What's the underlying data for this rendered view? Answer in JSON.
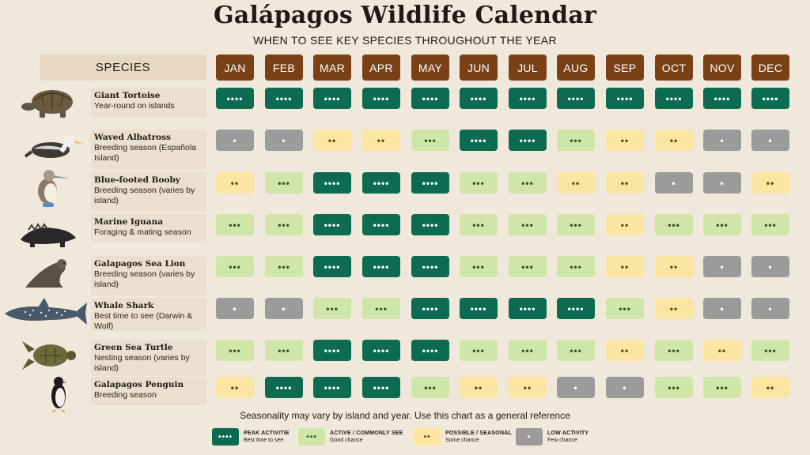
{
  "title": "Galápagos Wildlife Calendar",
  "subtitle": "WHEN TO SEE KEY SPECIES THROUGHOUT THE YEAR",
  "species_header": "SPECIES",
  "footnote": "Seasonality may vary by island and year. Use this chart as a general reference",
  "chart_data": {
    "type": "heatmap",
    "title": "Galápagos Wildlife Calendar",
    "subtitle": "WHEN TO SEE KEY SPECIES THROUGHOUT THE YEAR",
    "months": [
      "JAN",
      "FEB",
      "MAR",
      "APR",
      "MAY",
      "JUN",
      "JUL",
      "AUG",
      "SEP",
      "OCT",
      "NOV",
      "DEC"
    ],
    "levels": {
      "peak": {
        "symbol": "••••",
        "color": "#0c6b50"
      },
      "active": {
        "symbol": "•••",
        "color": "#cfe6a8"
      },
      "possible": {
        "symbol": "••",
        "color": "#fbe5a3"
      },
      "low": {
        "symbol": "•",
        "color": "#9b9b9b"
      }
    },
    "species": [
      {
        "name": "Giant Tortoise",
        "note": "Year-round on islands",
        "icon": "tortoise-icon",
        "values": [
          "peak",
          "peak",
          "peak",
          "peak",
          "peak",
          "peak",
          "peak",
          "peak",
          "peak",
          "peak",
          "peak",
          "peak"
        ]
      },
      {
        "name": "Waved Albatross",
        "note": "Breeding season (Española Island)",
        "icon": "albatross-icon",
        "values": [
          "low",
          "low",
          "possible",
          "possible",
          "active",
          "peak",
          "peak",
          "active",
          "possible",
          "possible",
          "low",
          "low"
        ]
      },
      {
        "name": "Blue-footed Booby",
        "note": "Breeding season (varies by island)",
        "icon": "booby-icon",
        "values": [
          "possible",
          "active",
          "peak",
          "peak",
          "peak",
          "active",
          "active",
          "possible",
          "possible",
          "low",
          "low",
          "possible"
        ]
      },
      {
        "name": "Marine Iguana",
        "note": "Foraging & mating season",
        "icon": "iguana-icon",
        "values": [
          "active",
          "active",
          "peak",
          "peak",
          "peak",
          "active",
          "active",
          "active",
          "possible",
          "active",
          "active",
          "active"
        ]
      },
      {
        "name": "Galapagos Sea Lion",
        "note": "Breeding season (varies by island)",
        "icon": "sea-lion-icon",
        "values": [
          "active",
          "active",
          "peak",
          "peak",
          "peak",
          "active",
          "active",
          "active",
          "possible",
          "possible",
          "low",
          "low"
        ]
      },
      {
        "name": "Whale Shark",
        "note": "Best time to see (Darwin & Wolf)",
        "icon": "whale-shark-icon",
        "values": [
          "low",
          "low",
          "active",
          "active",
          "peak",
          "peak",
          "peak",
          "peak",
          "active",
          "possible",
          "low",
          "low"
        ]
      },
      {
        "name": "Green Sea Turtle",
        "note": "Nesting season (varies by island)",
        "icon": "sea-turtle-icon",
        "values": [
          "active",
          "active",
          "peak",
          "peak",
          "peak",
          "active",
          "active",
          "active",
          "possible",
          "active",
          "possible",
          "active"
        ]
      },
      {
        "name": "Galapagos Penguin",
        "note": "Breeding season",
        "icon": "penguin-icon",
        "values": [
          "possible",
          "peak",
          "peak",
          "peak",
          "active",
          "possible",
          "possible",
          "low",
          "low",
          "active",
          "active",
          "possible"
        ]
      }
    ]
  },
  "legend": [
    {
      "level": "peak",
      "title": "PEAK ACTIVITIE",
      "sub": "Best time to see"
    },
    {
      "level": "active",
      "title": "ACTIVE / COMMONLY SEE",
      "sub": "Good chance"
    },
    {
      "level": "possible",
      "title": "POSSIBLE / SEASONAL",
      "sub": "Some chance"
    },
    {
      "level": "low",
      "title": "LOW ACTIVITY",
      "sub": "Few chance"
    }
  ]
}
